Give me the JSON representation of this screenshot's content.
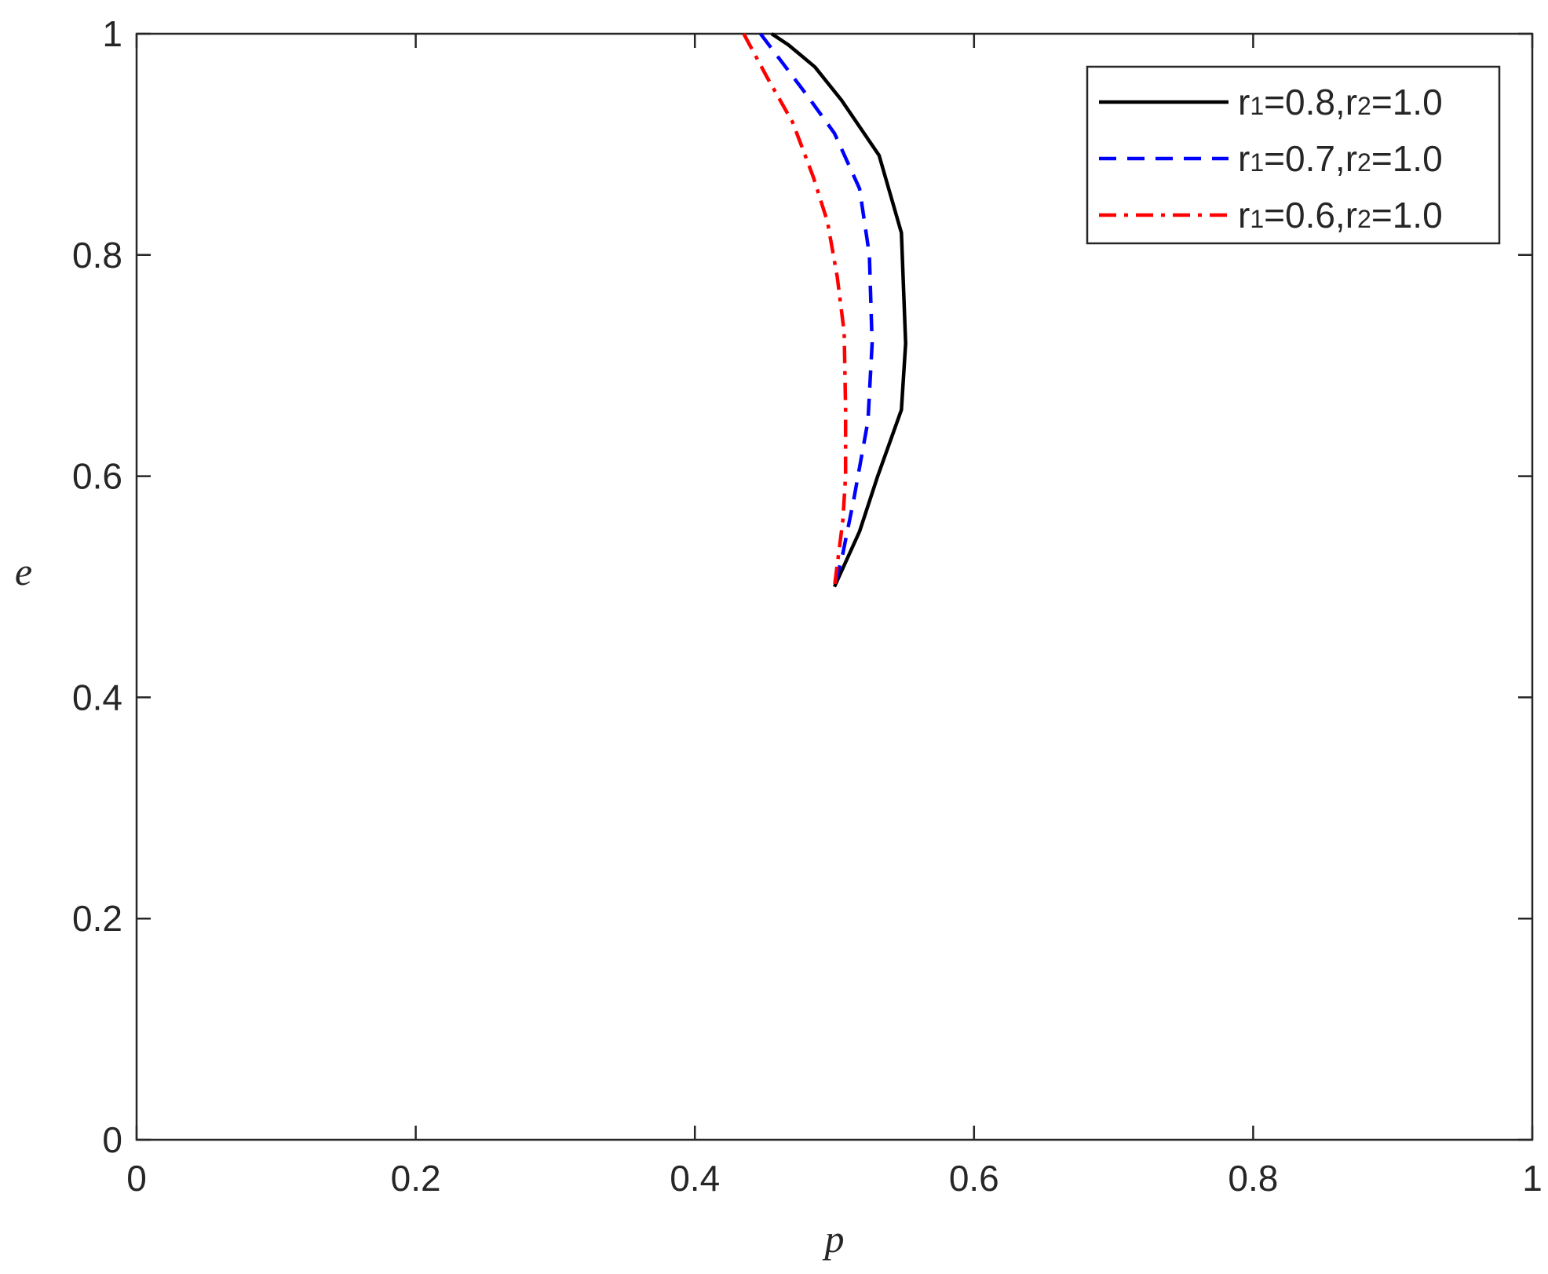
{
  "chart_data": {
    "type": "line",
    "title": "",
    "xlabel": "p",
    "ylabel": "e",
    "xlim": [
      0,
      1
    ],
    "ylim": [
      0,
      1
    ],
    "xticks": [
      "0",
      "0.2",
      "0.4",
      "0.6",
      "0.8",
      "1"
    ],
    "yticks": [
      "0",
      "0.2",
      "0.4",
      "0.6",
      "0.8",
      "1"
    ],
    "grid": false,
    "legend_position": "top-right",
    "series": [
      {
        "name": "r1=0.8,r2=1.0",
        "legend": {
          "a": "r",
          "a_sub": "1",
          "b": "=0.8,r",
          "b_sub": "2",
          "c": "=1.0"
        },
        "color": "#000000",
        "line_style": "solid",
        "x": [
          0.455,
          0.467,
          0.486,
          0.505,
          0.532,
          0.548,
          0.551,
          0.548,
          0.531,
          0.518,
          0.5
        ],
        "y": [
          1.0,
          0.99,
          0.97,
          0.94,
          0.89,
          0.82,
          0.72,
          0.66,
          0.6,
          0.55,
          0.5
        ]
      },
      {
        "name": "r1=0.7,r2=1.0",
        "legend": {
          "a": "r",
          "a_sub": "1",
          "b": "=0.7,r",
          "b_sub": "2",
          "c": "=1.0"
        },
        "color": "#0000ff",
        "line_style": "dashed",
        "x": [
          0.447,
          0.462,
          0.48,
          0.5,
          0.518,
          0.525,
          0.527,
          0.524,
          0.514,
          0.506,
          0.5
        ],
        "y": [
          1.0,
          0.975,
          0.945,
          0.91,
          0.86,
          0.8,
          0.72,
          0.65,
          0.58,
          0.53,
          0.5
        ]
      },
      {
        "name": "r1=0.6,r2=1.0",
        "legend": {
          "a": "r",
          "a_sub": "1",
          "b": "=0.6,r",
          "b_sub": "2",
          "c": "=1.0"
        },
        "color": "#ff0000",
        "line_style": "dashdot",
        "x": [
          0.435,
          0.452,
          0.47,
          0.485,
          0.495,
          0.502,
          0.507,
          0.508,
          0.508,
          0.506,
          0.502,
          0.5
        ],
        "y": [
          1.0,
          0.96,
          0.92,
          0.87,
          0.83,
          0.78,
          0.73,
          0.66,
          0.6,
          0.56,
          0.52,
          0.5
        ]
      }
    ]
  }
}
